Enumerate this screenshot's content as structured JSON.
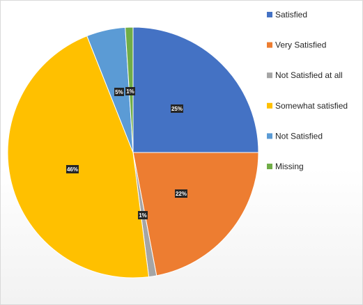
{
  "chart_data": {
    "type": "pie",
    "title": "",
    "slices": [
      {
        "name": "Satisfied",
        "value": 25,
        "label": "25%",
        "color": "#4472C4"
      },
      {
        "name": "Very Satisfied",
        "value": 22,
        "label": "22%",
        "color": "#ED7D31"
      },
      {
        "name": "Not Satisfied at all",
        "value": 1,
        "label": "1%",
        "color": "#A5A5A5"
      },
      {
        "name": "Somewhat satisfied",
        "value": 46,
        "label": "46%",
        "color": "#FFC000"
      },
      {
        "name": "Not Satisfied",
        "value": 5,
        "label": "5%",
        "color": "#5B9BD5"
      },
      {
        "name": "Missing",
        "value": 1,
        "label": "1%",
        "color": "#70AD47"
      }
    ],
    "legend": {
      "placement": "right",
      "entries": [
        "Satisfied",
        "Very Satisfied",
        "Not Satisfied at all",
        "Somewhat satisfied",
        "Not Satisfied",
        "Missing"
      ]
    },
    "start": "12 o'clock",
    "direction": "clockwise"
  }
}
